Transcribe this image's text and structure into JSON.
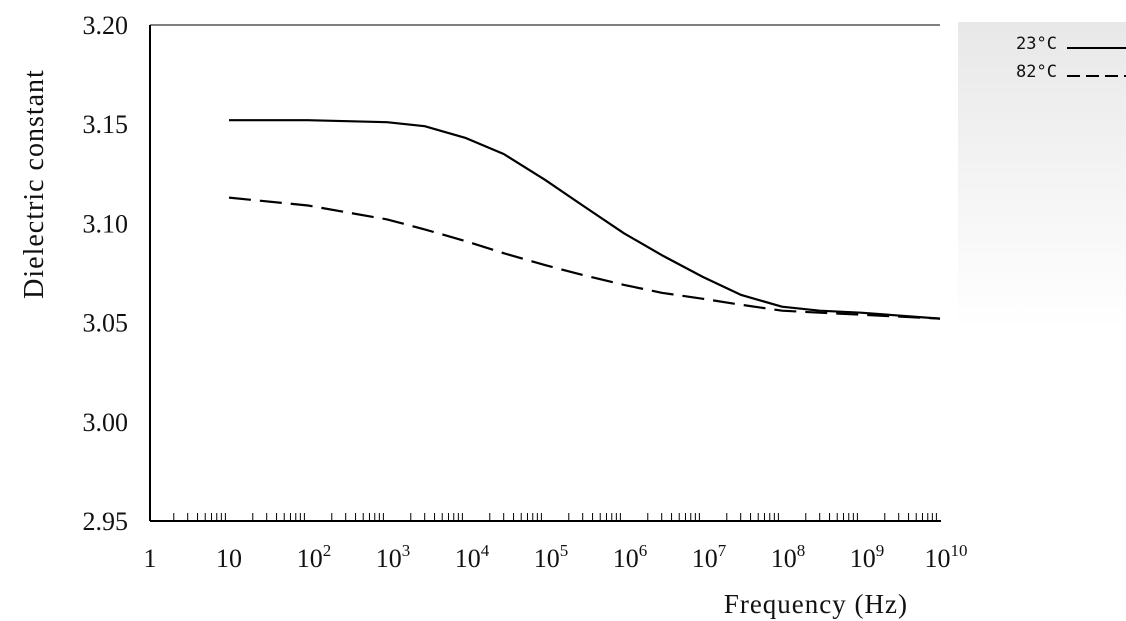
{
  "chart_data": {
    "type": "line",
    "xlabel": "Frequency (Hz)",
    "ylabel": "Dielectric constant",
    "x_scale": "log",
    "xlim": [
      1,
      10000000000
    ],
    "ylim": [
      2.95,
      3.2
    ],
    "y_ticks": [
      "2.95",
      "3.00",
      "3.05",
      "3.10",
      "3.15",
      "3.20"
    ],
    "x_ticks": [
      {
        "base": "1",
        "exp": ""
      },
      {
        "base": "10",
        "exp": ""
      },
      {
        "base": "10",
        "exp": "2"
      },
      {
        "base": "10",
        "exp": "3"
      },
      {
        "base": "10",
        "exp": "4"
      },
      {
        "base": "10",
        "exp": "5"
      },
      {
        "base": "10",
        "exp": "6"
      },
      {
        "base": "10",
        "exp": "7"
      },
      {
        "base": "10",
        "exp": "8"
      },
      {
        "base": "10",
        "exp": "9"
      },
      {
        "base": "10",
        "exp": "10"
      }
    ],
    "legend_position": "top-right",
    "grid": false,
    "series": [
      {
        "name": "23°C",
        "style": "solid",
        "color": "#000000",
        "x": [
          10,
          100,
          1000,
          3000,
          10000,
          30000,
          100000,
          300000,
          1000000,
          3000000,
          10000000,
          30000000,
          100000000,
          300000000,
          1000000000,
          10000000000
        ],
        "y": [
          3.152,
          3.152,
          3.151,
          3.149,
          3.143,
          3.135,
          3.122,
          3.109,
          3.095,
          3.084,
          3.073,
          3.064,
          3.058,
          3.056,
          3.055,
          3.052
        ]
      },
      {
        "name": "82°C",
        "style": "dashed",
        "color": "#000000",
        "x": [
          10,
          100,
          1000,
          3000,
          10000,
          30000,
          100000,
          300000,
          1000000,
          3000000,
          10000000,
          30000000,
          100000000,
          300000000,
          1000000000,
          10000000000
        ],
        "y": [
          3.113,
          3.109,
          3.102,
          3.097,
          3.091,
          3.085,
          3.079,
          3.074,
          3.069,
          3.065,
          3.062,
          3.059,
          3.056,
          3.055,
          3.054,
          3.052
        ]
      }
    ]
  }
}
